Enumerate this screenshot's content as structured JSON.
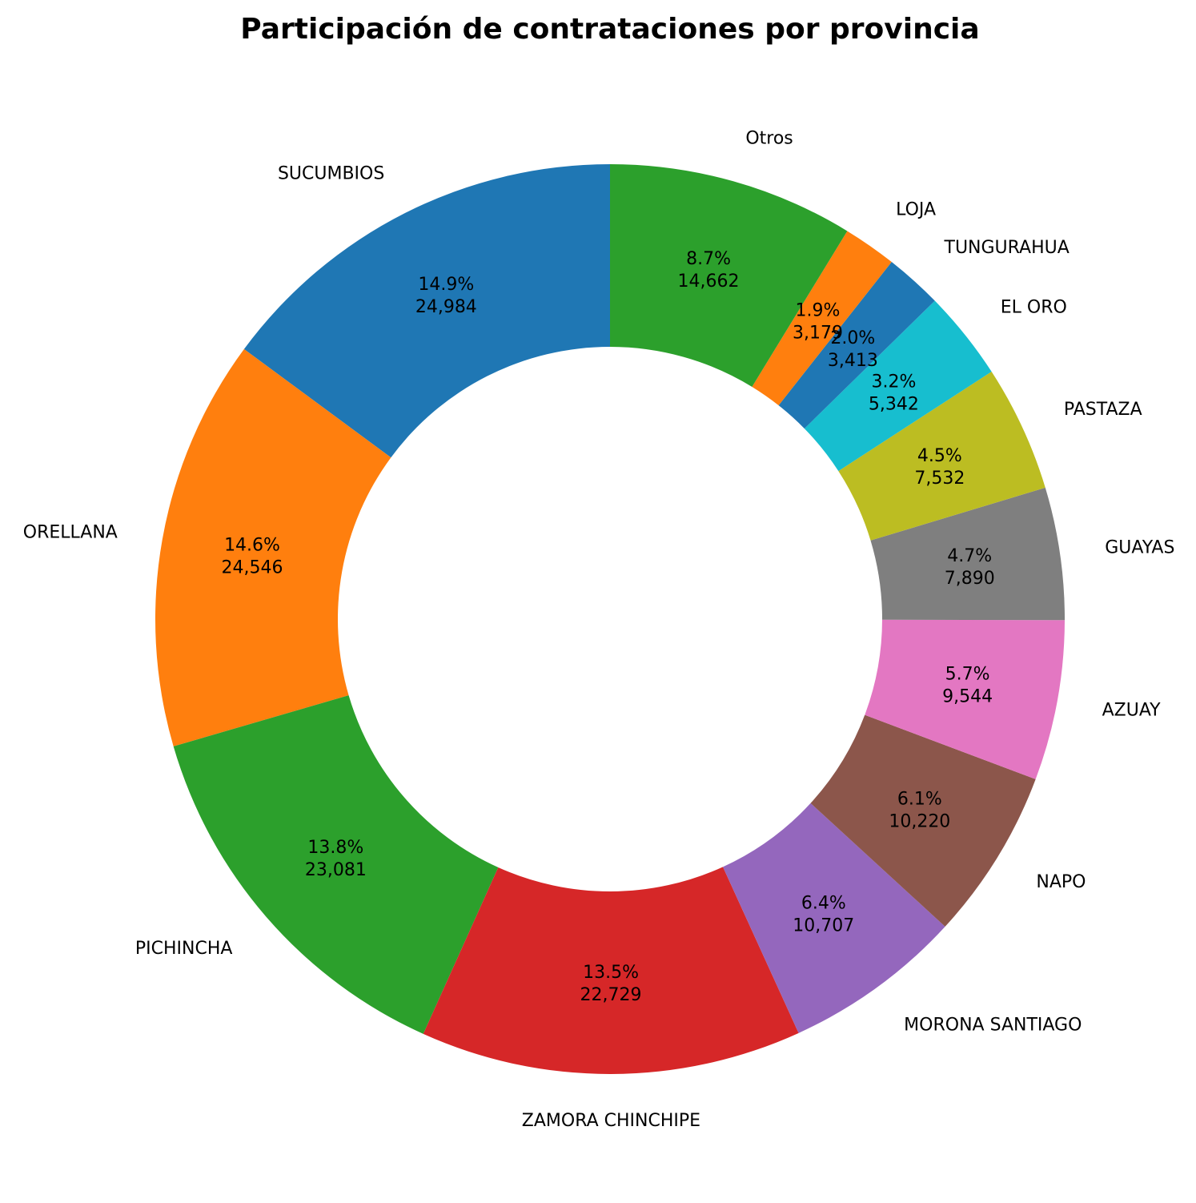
{
  "chart_data": {
    "type": "pie",
    "title": "Participación de contrataciones por provincia",
    "donut": true,
    "start_angle_deg": 90,
    "direction": "counterclockwise",
    "slices": [
      {
        "label": "SUCUMBIOS",
        "value": 24984,
        "percent_label": "14.9%",
        "value_label": "24,984",
        "color": "#1f77b4"
      },
      {
        "label": "ORELLANA",
        "value": 24546,
        "percent_label": "14.6%",
        "value_label": "24,546",
        "color": "#ff7f0e"
      },
      {
        "label": "PICHINCHA",
        "value": 23081,
        "percent_label": "13.8%",
        "value_label": "23,081",
        "color": "#2ca02c"
      },
      {
        "label": "ZAMORA CHINCHIPE",
        "value": 22729,
        "percent_label": "13.5%",
        "value_label": "22,729",
        "color": "#d62728"
      },
      {
        "label": "MORONA SANTIAGO",
        "value": 10707,
        "percent_label": "6.4%",
        "value_label": "10,707",
        "color": "#9467bd"
      },
      {
        "label": "NAPO",
        "value": 10220,
        "percent_label": "6.1%",
        "value_label": "10,220",
        "color": "#8c564b"
      },
      {
        "label": "AZUAY",
        "value": 9544,
        "percent_label": "5.7%",
        "value_label": "9,544",
        "color": "#e377c2"
      },
      {
        "label": "GUAYAS",
        "value": 7890,
        "percent_label": "4.7%",
        "value_label": "7,890",
        "color": "#7f7f7f"
      },
      {
        "label": "PASTAZA",
        "value": 7532,
        "percent_label": "4.5%",
        "value_label": "7,532",
        "color": "#bcbd22"
      },
      {
        "label": "EL ORO",
        "value": 5342,
        "percent_label": "3.2%",
        "value_label": "5,342",
        "color": "#17becf"
      },
      {
        "label": "TUNGURAHUA",
        "value": 3413,
        "percent_label": "2.0%",
        "value_label": "3,413",
        "color": "#1f77b4"
      },
      {
        "label": "LOJA",
        "value": 3179,
        "percent_label": "1.9%",
        "value_label": "3,179",
        "color": "#ff7f0e"
      },
      {
        "label": "Otros",
        "value": 14662,
        "percent_label": "8.7%",
        "value_label": "14,662",
        "color": "#2ca02c"
      }
    ]
  }
}
